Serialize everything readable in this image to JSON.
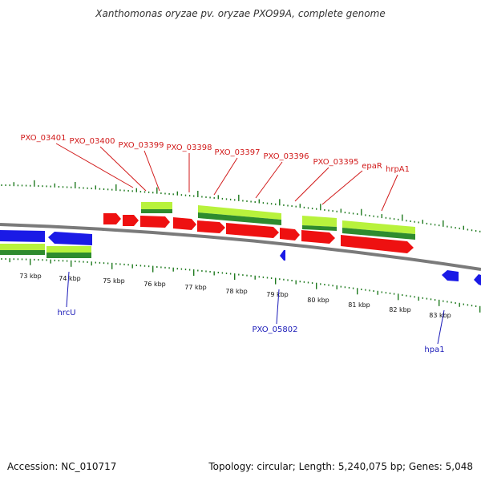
{
  "title": "Xanthomonas oryzae pv. oryzae PXO99A, complete genome",
  "footer": {
    "accession": "Accession: NC_010717",
    "stats": "Topology: circular; Length: 5,240,075 bp; Genes: 5,048"
  },
  "colors": {
    "backbone": "#8c8c8c",
    "feature_forward": "#ee1111",
    "feature_reverse": "#1a1ae6",
    "cds_light": "#b8f23c",
    "cds_dark": "#2e8b2e",
    "tick": "#1f7a1f",
    "label_forward": "#d11a1a",
    "label_reverse": "#1a1ab8"
  },
  "scale": {
    "labels": [
      "73 kbp",
      "74 kbp",
      "75 kbp",
      "76 kbp",
      "77 kbp",
      "78 kbp",
      "79 kbp",
      "80 kbp",
      "81 kbp",
      "82 kbp",
      "83 kbp"
    ]
  },
  "genes_forward": [
    "PXO_03401",
    "PXO_03400",
    "PXO_03399",
    "PXO_03398",
    "PXO_03397",
    "PXO_03396",
    "PXO_03395",
    "epaR",
    "hrpA1"
  ],
  "genes_reverse": [
    "hrcU",
    "PXO_05802",
    "hpa1"
  ]
}
